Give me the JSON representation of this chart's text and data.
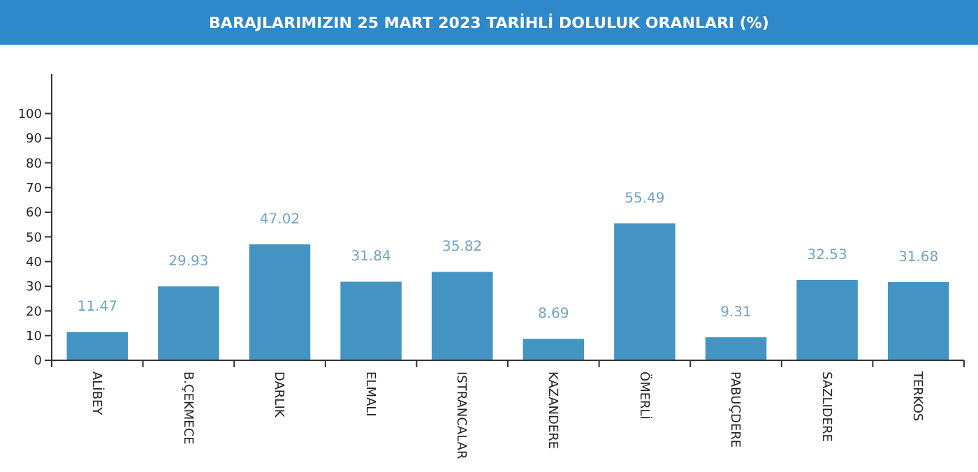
{
  "chart_data": {
    "type": "bar",
    "title": "BARAJLARIMIZIN 25 MART 2023 TARİHLİ DOLULUK ORANLARI (%)",
    "categories": [
      "ALİBEY",
      "B.ÇEKMECE",
      "DARLIK",
      "ELMALI",
      "ISTRANCALAR",
      "KAZANDERE",
      "ÖMERLİ",
      "PABUÇDERE",
      "SAZLIDERE",
      "TERKOS"
    ],
    "values": [
      11.47,
      29.93,
      47.02,
      31.84,
      35.82,
      8.69,
      55.49,
      9.31,
      32.53,
      31.68
    ],
    "color": "#4394c2",
    "data_labels": true,
    "ylim": [
      0,
      116
    ],
    "yticks": [
      0,
      10,
      20,
      30,
      40,
      50,
      60,
      70,
      80,
      90,
      100
    ],
    "grid": false
  }
}
